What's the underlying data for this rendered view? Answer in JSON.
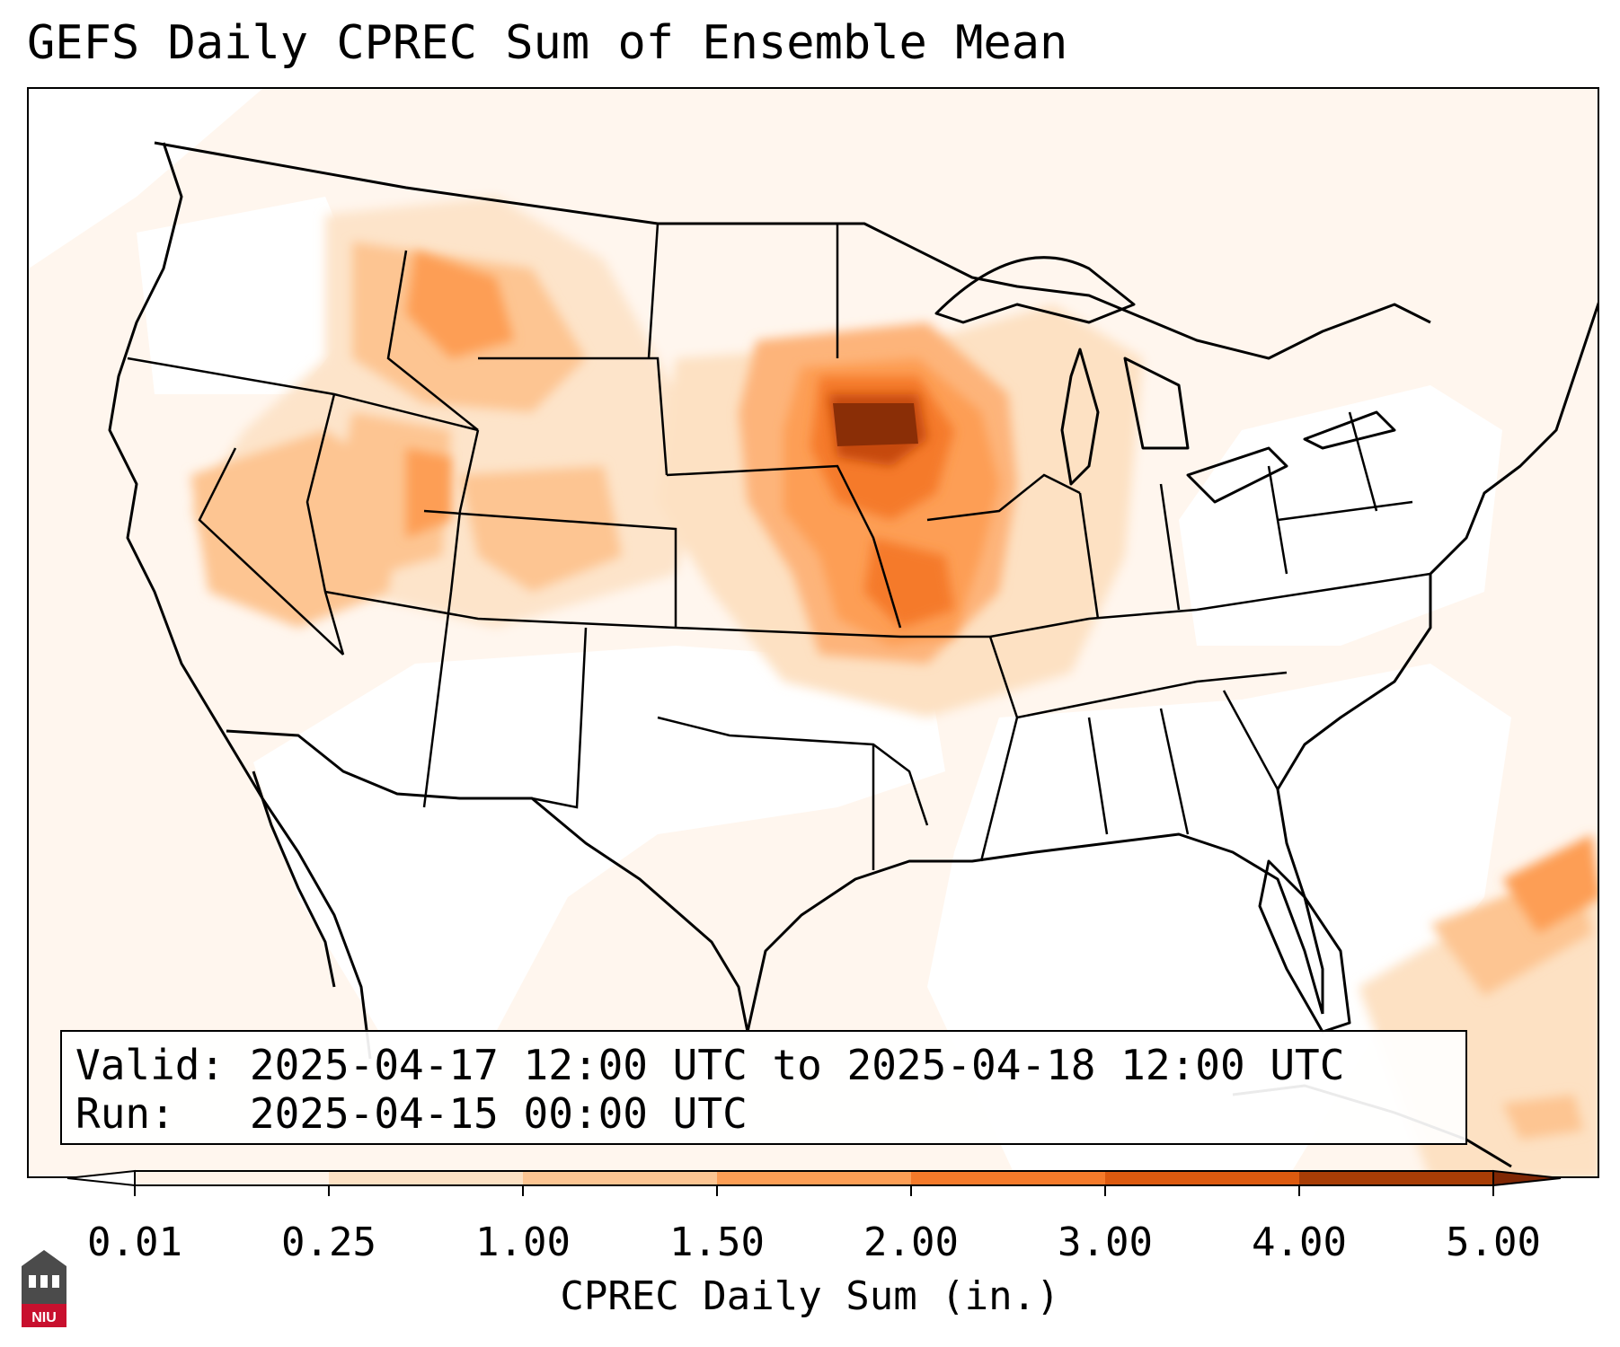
{
  "title": "GEFS Daily CPREC Sum of Ensemble Mean",
  "info": {
    "valid_label": "Valid:",
    "valid_value": "2025-04-17 12:00 UTC to 2025-04-18 12:00 UTC",
    "run_label": "Run:",
    "run_value": "2025-04-15 00:00 UTC"
  },
  "colorbar": {
    "label": "CPREC Daily Sum (in.)",
    "ticks": [
      "0.01",
      "0.25",
      "1.00",
      "1.50",
      "2.00",
      "3.00",
      "4.00",
      "5.00"
    ],
    "colors": [
      "#fff3e8",
      "#fde1c3",
      "#fdc592",
      "#fd9e55",
      "#f57a2a",
      "#dd5a0f",
      "#a83d06"
    ],
    "under_color": "#ffffff",
    "over_color": "#7f2704"
  },
  "precip_scale_colors": {
    "trace": "#fff3e8",
    "light": "#fde1c3",
    "moderate": "#fdc592",
    "heavy": "#fd9e55",
    "very_heavy": "#f57a2a",
    "extreme": "#dd5a0f",
    "max": "#8a2e06"
  },
  "logo": {
    "text": "NIU"
  }
}
